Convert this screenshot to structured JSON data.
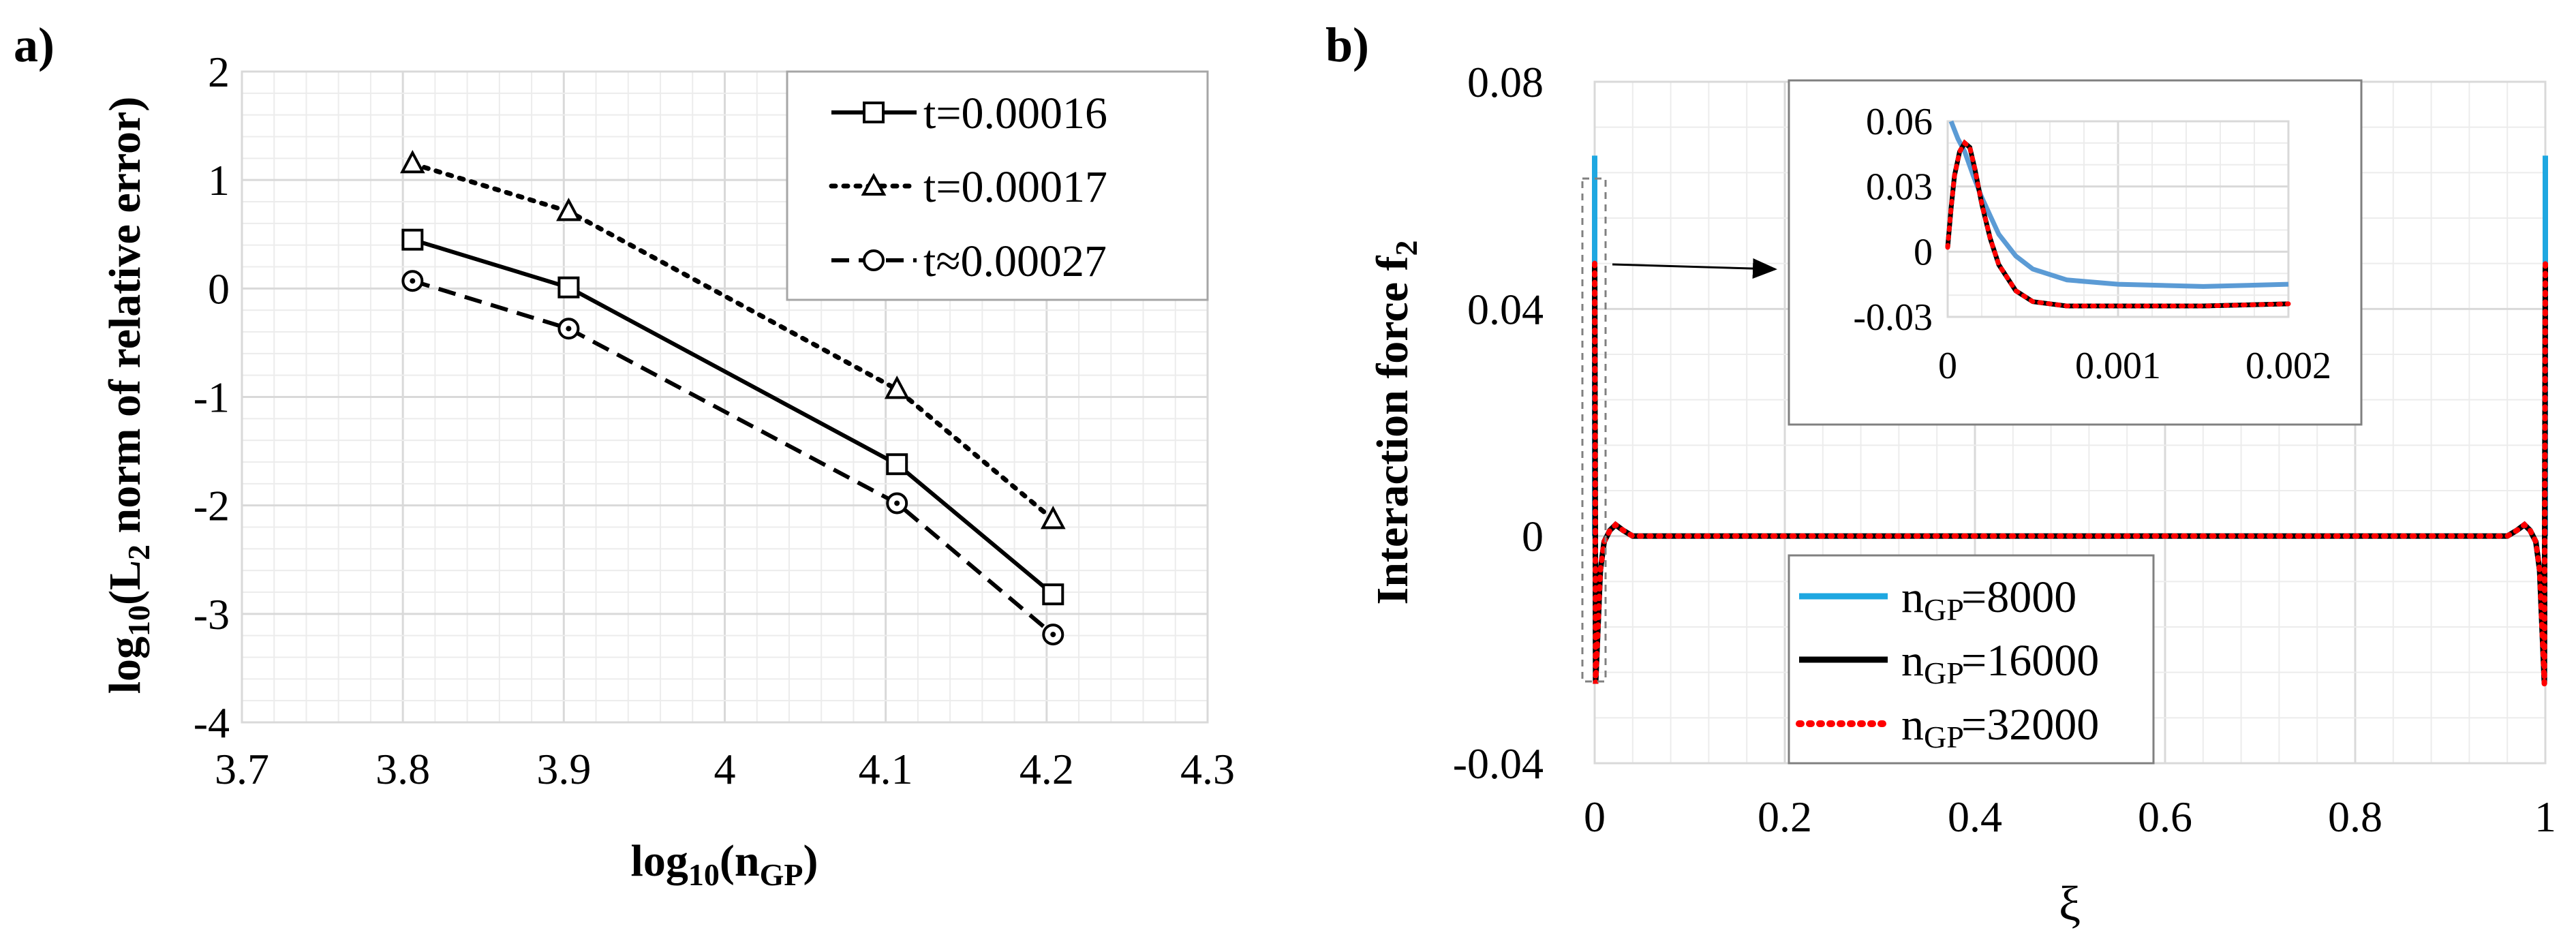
{
  "panel_a": {
    "label": "a)",
    "legend": [
      "t=0.00016",
      "t=0.00017",
      "t≈0.00027"
    ]
  },
  "panel_b": {
    "label": "b)",
    "legend": [
      "=8000",
      "=16000",
      "=32000"
    ]
  },
  "chart_data": [
    {
      "type": "line",
      "title": "",
      "xlabel": "log10(nGP)",
      "ylabel": "log10(L2 norm of relative error)",
      "xlim": [
        3.7,
        4.3
      ],
      "ylim": [
        -4,
        2
      ],
      "xticks": [
        "3.7",
        "3.8",
        "3.9",
        "4",
        "4.1",
        "4.2",
        "4.3"
      ],
      "yticks": [
        "2",
        "1",
        "0",
        "-1",
        "-2",
        "-3",
        "-4"
      ],
      "legend_position": "top-right",
      "series": [
        {
          "name": "t=0.00016",
          "marker": "square",
          "linestyle": "solid",
          "x": [
            3.806,
            3.903,
            4.107,
            4.204
          ],
          "y": [
            0.45,
            0.01,
            -1.62,
            -2.82
          ]
        },
        {
          "name": "t=0.00017",
          "marker": "triangle",
          "linestyle": "dotted",
          "x": [
            3.806,
            3.903,
            4.107,
            4.204
          ],
          "y": [
            1.15,
            0.71,
            -0.93,
            -2.13
          ]
        },
        {
          "name": "t≈0.00027",
          "marker": "circle",
          "linestyle": "dashed",
          "x": [
            3.806,
            3.903,
            4.107,
            4.204
          ],
          "y": [
            0.07,
            -0.37,
            -1.98,
            -3.19
          ]
        }
      ]
    },
    {
      "type": "line",
      "title": "",
      "xlabel": "ξ",
      "ylabel": "Interaction force f2",
      "xlim": [
        0,
        1
      ],
      "ylim": [
        -0.04,
        0.08
      ],
      "xticks": [
        "0",
        "0.2",
        "0.4",
        "0.6",
        "0.8",
        "1"
      ],
      "yticks": [
        "0.08",
        "0.04",
        "0",
        "-0.04"
      ],
      "legend_position": "bottom-left",
      "series": [
        {
          "name": "nGP =8000",
          "color": "#1ea7e1",
          "linestyle": "solid"
        },
        {
          "name": "nGP =16000",
          "color": "#000000",
          "linestyle": "solid"
        },
        {
          "name": "nGP =32000",
          "color": "#ff0000",
          "linestyle": "dotted"
        }
      ],
      "main_curve": {
        "x": [
          0,
          0.001,
          0.003,
          0.006,
          0.01,
          0.016,
          0.022,
          0.03,
          0.04,
          0.06,
          0.1,
          0.3,
          0.5,
          0.7,
          0.9,
          0.94,
          0.96,
          0.97,
          0.978,
          0.984,
          0.99,
          0.994,
          0.997,
          0.999,
          1
        ],
        "y": [
          0.048,
          -0.026,
          -0.018,
          -0.006,
          -0.001,
          0.001,
          0.002,
          0.001,
          0,
          0,
          0,
          0,
          0,
          0,
          0,
          0,
          0,
          0.001,
          0.002,
          0.001,
          -0.001,
          -0.006,
          -0.018,
          -0.026,
          0.048
        ]
      },
      "blue_end_spike": 0.067,
      "inset": {
        "xlim": [
          0,
          0.002
        ],
        "ylim": [
          -0.03,
          0.06
        ],
        "xticks": [
          "0",
          "0.001",
          "0.002"
        ],
        "yticks": [
          "0.06",
          "0.03",
          "0",
          "-0.03"
        ],
        "blue": {
          "x": [
            2e-05,
            6e-05,
            0.0001,
            0.00015,
            0.0002,
            0.0003,
            0.0004,
            0.0005,
            0.0007,
            0.001,
            0.0015,
            0.002
          ],
          "y": [
            0.06,
            0.052,
            0.046,
            0.035,
            0.025,
            0.008,
            -0.002,
            -0.008,
            -0.013,
            -0.015,
            -0.016,
            -0.015
          ]
        },
        "black_red": {
          "x": [
            0,
            2e-05,
            4e-05,
            7e-05,
            0.0001,
            0.00013,
            0.00016,
            0.0002,
            0.00025,
            0.0003,
            0.0004,
            0.0005,
            0.0007,
            0.001,
            0.0015,
            0.002
          ],
          "y": [
            0.002,
            0.02,
            0.035,
            0.046,
            0.05,
            0.048,
            0.038,
            0.022,
            0.006,
            -0.006,
            -0.018,
            -0.023,
            -0.025,
            -0.025,
            -0.025,
            -0.024
          ]
        }
      }
    }
  ]
}
